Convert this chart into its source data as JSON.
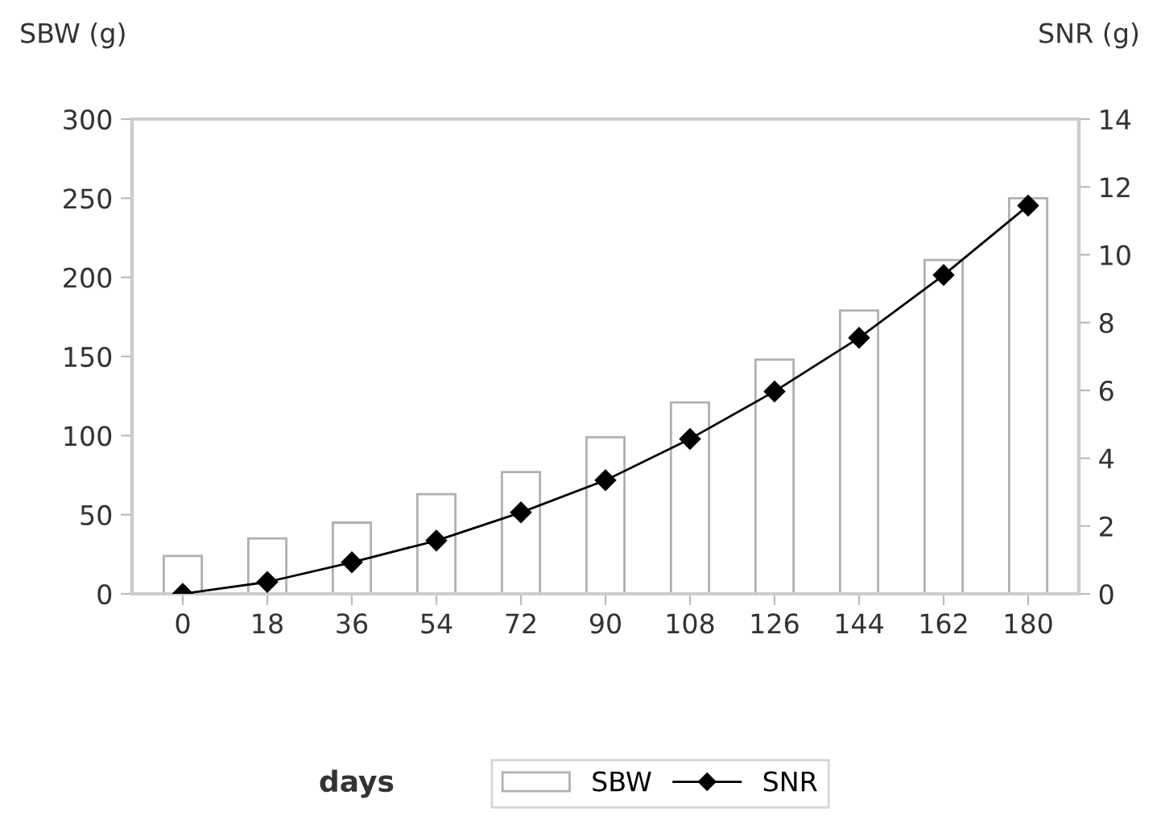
{
  "chart_data": {
    "type": "bar",
    "xlabel": "days",
    "ylabel": "SBW (g)",
    "y2label": "SNR (g)",
    "categories": [
      "0",
      "18",
      "36",
      "54",
      "72",
      "90",
      "108",
      "126",
      "144",
      "162",
      "180"
    ],
    "series": [
      {
        "name": "SBW",
        "color": "#ffffff",
        "values": [
          24,
          35,
          45,
          63,
          77,
          99,
          121,
          148,
          179,
          211,
          250
        ]
      },
      {
        "name": "SNR",
        "type": "line",
        "axis": "y2",
        "color": "#000000",
        "marker": "diamond",
        "values": [
          0,
          0.35,
          0.93,
          1.57,
          2.4,
          3.35,
          4.57,
          5.97,
          7.55,
          9.4,
          11.45
        ]
      }
    ],
    "ylim": [
      0,
      300
    ],
    "yticks": [
      0,
      50,
      100,
      150,
      200,
      250,
      300
    ],
    "y2lim": [
      0,
      14
    ],
    "y2ticks": [
      0,
      2,
      4,
      6,
      8,
      10,
      12,
      14
    ],
    "grid": false,
    "legend": "bottom"
  }
}
